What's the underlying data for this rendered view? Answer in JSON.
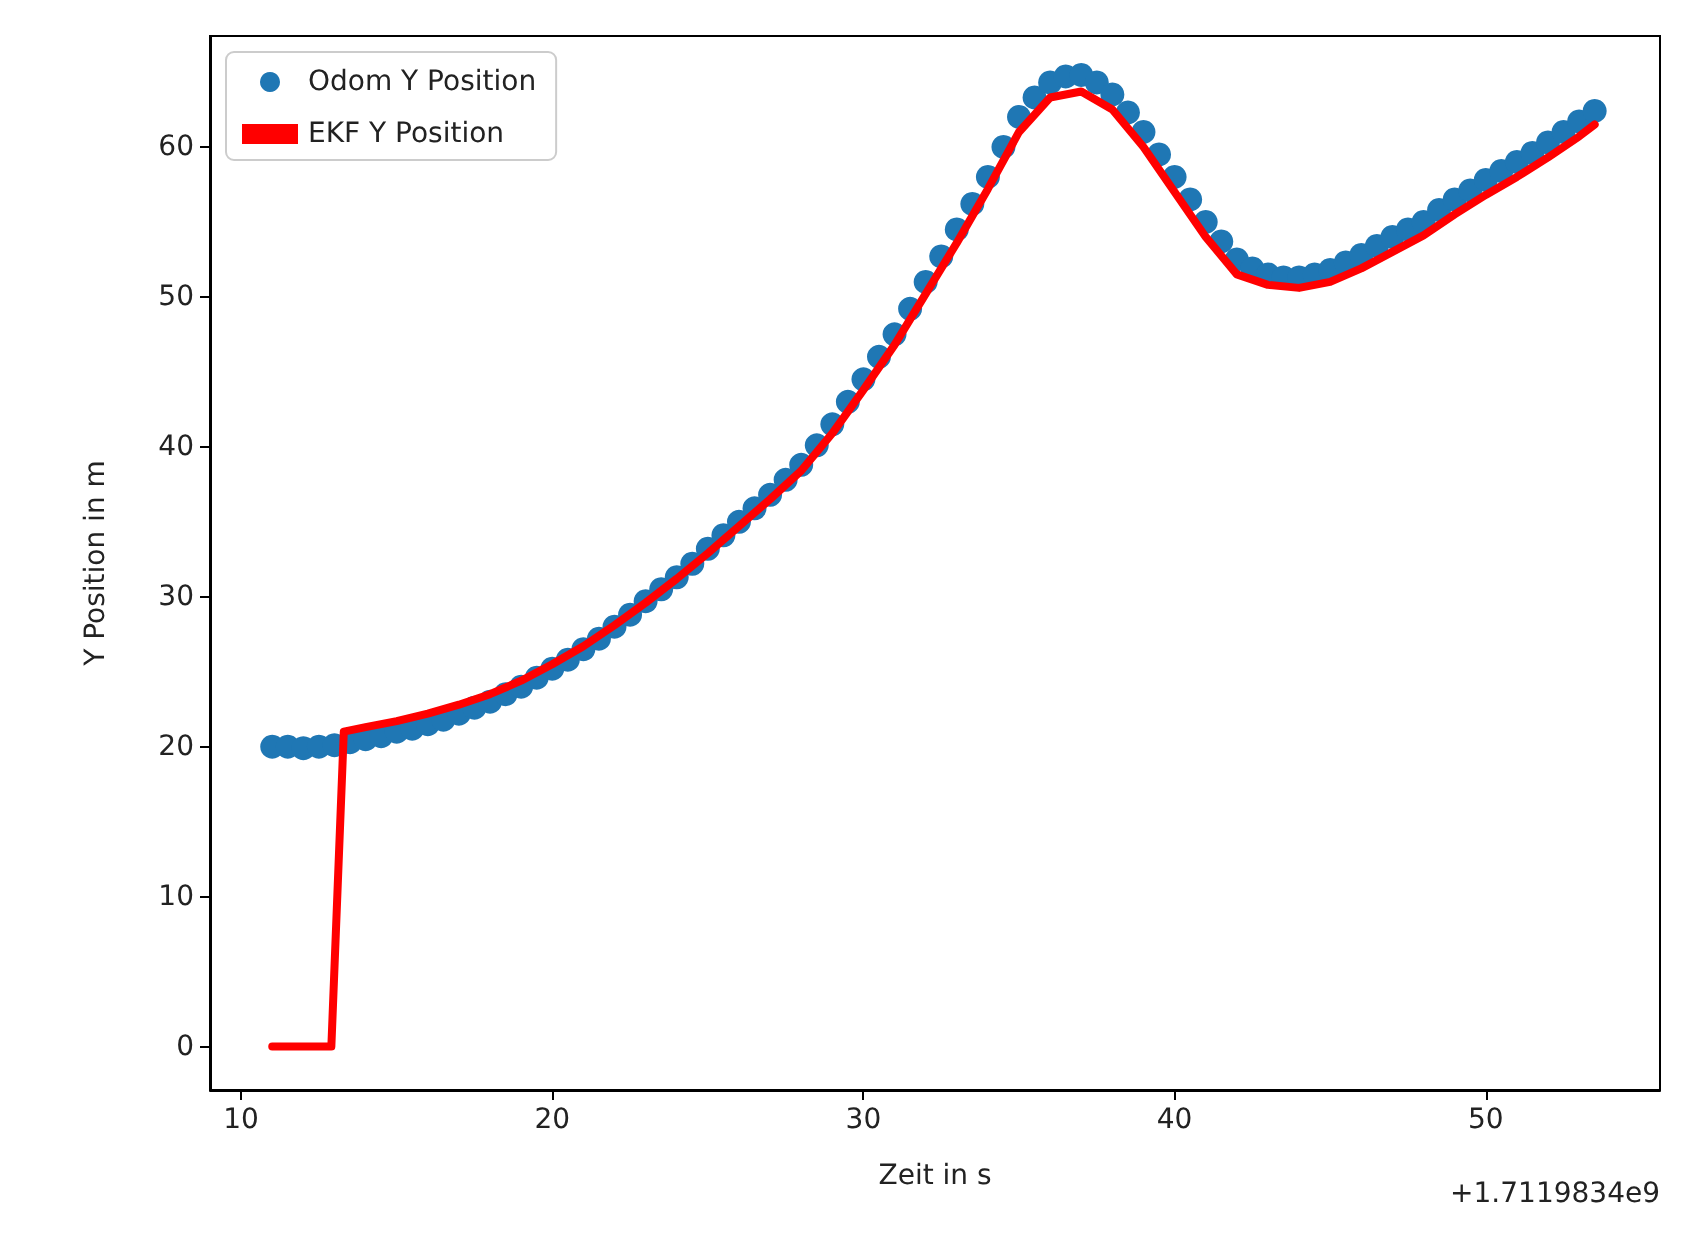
{
  "chart_data": {
    "type": "scatter",
    "xlabel": "Zeit in s",
    "ylabel": "Y Position in m",
    "annotations": [
      "+1.7119834e9"
    ],
    "xlim": [
      9,
      55.6
    ],
    "ylim": [
      -2.9,
      67.4
    ],
    "xticks": [
      10,
      20,
      30,
      40,
      50
    ],
    "yticks": [
      0,
      10,
      20,
      30,
      40,
      50,
      60
    ],
    "grid": false,
    "legend": "top left",
    "series": [
      {
        "name": "Odom Y Position",
        "color": "#1f77b4",
        "marker": "circle",
        "x": [
          11,
          11.5,
          12,
          12.5,
          13,
          13.5,
          14,
          14.5,
          15,
          15.5,
          16,
          16.5,
          17,
          17.5,
          18,
          18.5,
          19,
          19.5,
          20,
          20.5,
          21,
          21.5,
          22,
          22.5,
          23,
          23.5,
          24,
          24.5,
          25,
          25.5,
          26,
          26.5,
          27,
          27.5,
          28,
          28.5,
          29,
          29.5,
          30,
          30.5,
          31,
          31.5,
          32,
          32.5,
          33,
          33.5,
          34,
          34.5,
          35,
          35.5,
          36,
          36.5,
          37,
          37.5,
          38,
          38.5,
          39,
          39.5,
          40,
          40.5,
          41,
          41.5,
          42,
          42.5,
          43,
          43.5,
          44,
          44.5,
          45,
          45.5,
          46,
          46.5,
          47,
          47.5,
          48,
          48.5,
          49,
          49.5,
          50,
          50.5,
          51,
          51.5,
          52,
          52.5,
          53,
          53.5
        ],
        "values": [
          20,
          20,
          19.9,
          20,
          20.1,
          20.3,
          20.5,
          20.7,
          21,
          21.2,
          21.5,
          21.8,
          22.2,
          22.6,
          23,
          23.5,
          24,
          24.6,
          25.2,
          25.8,
          26.5,
          27.2,
          28,
          28.8,
          29.7,
          30.5,
          31.3,
          32.2,
          33.2,
          34.1,
          35,
          35.9,
          36.8,
          37.8,
          38.8,
          40.1,
          41.5,
          43,
          44.5,
          46,
          47.5,
          49.2,
          51,
          52.7,
          54.5,
          56.2,
          58,
          60,
          62,
          63.3,
          64.3,
          64.7,
          64.8,
          64.3,
          63.5,
          62.3,
          61,
          59.5,
          58,
          56.5,
          55,
          53.7,
          52.5,
          51.9,
          51.5,
          51.3,
          51.3,
          51.5,
          51.8,
          52.3,
          52.8,
          53.4,
          54,
          54.5,
          55,
          55.8,
          56.5,
          57.1,
          57.8,
          58.4,
          59,
          59.6,
          60.3,
          61,
          61.7,
          62.4
        ]
      },
      {
        "name": "EKF Y Position",
        "type": "line",
        "color": "#ff0000",
        "marker": "none",
        "line_style": "solid",
        "x": [
          11,
          12.9,
          13.3,
          14,
          15,
          16,
          17,
          18,
          19,
          20,
          21,
          22,
          23,
          24,
          25,
          26,
          27,
          28,
          29,
          30,
          31,
          32,
          33,
          34,
          35,
          36,
          37,
          38,
          39,
          40,
          41,
          42,
          43,
          44,
          45,
          46,
          47,
          48,
          49,
          50,
          51,
          52,
          53,
          53.5
        ],
        "values": [
          0,
          0,
          21,
          21.3,
          21.7,
          22.2,
          22.8,
          23.5,
          24.4,
          25.5,
          26.7,
          28.1,
          29.6,
          31.2,
          32.9,
          34.7,
          36.5,
          38.4,
          40.9,
          43.8,
          46.8,
          50.2,
          53.6,
          57.2,
          61,
          63.3,
          63.7,
          62.5,
          60,
          57,
          54,
          51.5,
          50.8,
          50.6,
          51,
          51.9,
          53,
          54.1,
          55.5,
          56.8,
          58,
          59.3,
          60.7,
          61.5
        ]
      }
    ]
  }
}
